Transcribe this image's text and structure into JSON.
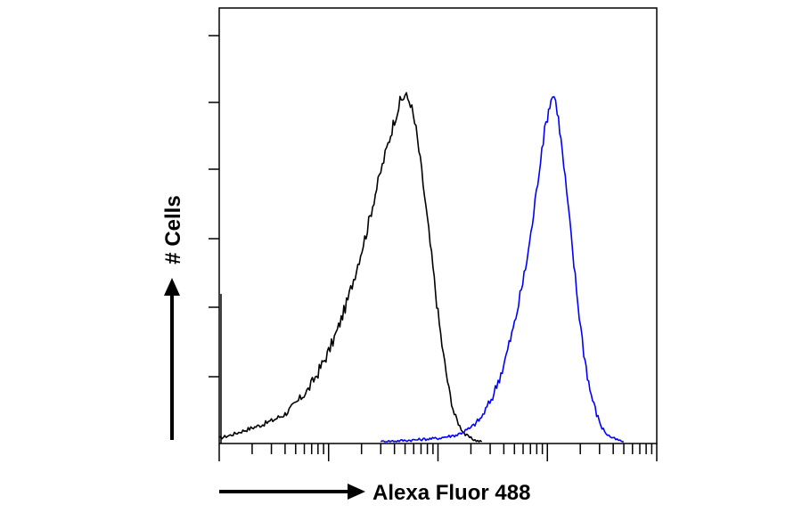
{
  "chart_data": {
    "type": "line",
    "title": "",
    "xlabel": "Alexa Fluor 488",
    "ylabel": "# Cells",
    "x_scale": "log",
    "xlim": [
      1,
      10000
    ],
    "ylim": [
      0,
      1.05
    ],
    "grid": false,
    "legend": "none",
    "series": [
      {
        "color": "#000000",
        "points": [
          [
            1,
            0.01
          ],
          [
            1.3,
            0.02
          ],
          [
            1.6,
            0.03
          ],
          [
            2,
            0.04
          ],
          [
            2.5,
            0.05
          ],
          [
            3,
            0.06
          ],
          [
            4,
            0.08
          ],
          [
            5,
            0.11
          ],
          [
            6.5,
            0.15
          ],
          [
            8,
            0.2
          ],
          [
            10,
            0.26
          ],
          [
            12,
            0.32
          ],
          [
            15,
            0.41
          ],
          [
            18,
            0.5
          ],
          [
            22,
            0.6
          ],
          [
            26,
            0.7
          ],
          [
            30,
            0.78
          ],
          [
            35,
            0.86
          ],
          [
            40,
            0.93
          ],
          [
            45,
            0.98
          ],
          [
            50,
            1.0
          ],
          [
            56,
            0.98
          ],
          [
            63,
            0.9
          ],
          [
            71,
            0.78
          ],
          [
            80,
            0.64
          ],
          [
            90,
            0.5
          ],
          [
            100,
            0.37
          ],
          [
            112,
            0.25
          ],
          [
            126,
            0.15
          ],
          [
            141,
            0.08
          ],
          [
            158,
            0.045
          ],
          [
            178,
            0.02
          ],
          [
            200,
            0.01
          ],
          [
            224,
            0.003
          ],
          [
            251,
            0.0
          ]
        ]
      },
      {
        "color": "#0000ff",
        "points": [
          [
            30,
            0.0
          ],
          [
            60,
            0.005
          ],
          [
            100,
            0.01
          ],
          [
            150,
            0.02
          ],
          [
            200,
            0.04
          ],
          [
            250,
            0.07
          ],
          [
            316,
            0.13
          ],
          [
            398,
            0.22
          ],
          [
            501,
            0.34
          ],
          [
            631,
            0.5
          ],
          [
            708,
            0.6
          ],
          [
            794,
            0.72
          ],
          [
            891,
            0.85
          ],
          [
            1000,
            0.94
          ],
          [
            1080,
            0.99
          ],
          [
            1150,
            1.0
          ],
          [
            1230,
            0.96
          ],
          [
            1330,
            0.87
          ],
          [
            1500,
            0.72
          ],
          [
            1700,
            0.55
          ],
          [
            1900,
            0.4
          ],
          [
            2150,
            0.26
          ],
          [
            2450,
            0.15
          ],
          [
            2820,
            0.08
          ],
          [
            3160,
            0.04
          ],
          [
            3550,
            0.02
          ],
          [
            3980,
            0.01
          ],
          [
            4470,
            0.004
          ],
          [
            5000,
            0.0
          ]
        ]
      }
    ]
  },
  "colors": {
    "axis": "#000000",
    "arrow": "#000000"
  }
}
